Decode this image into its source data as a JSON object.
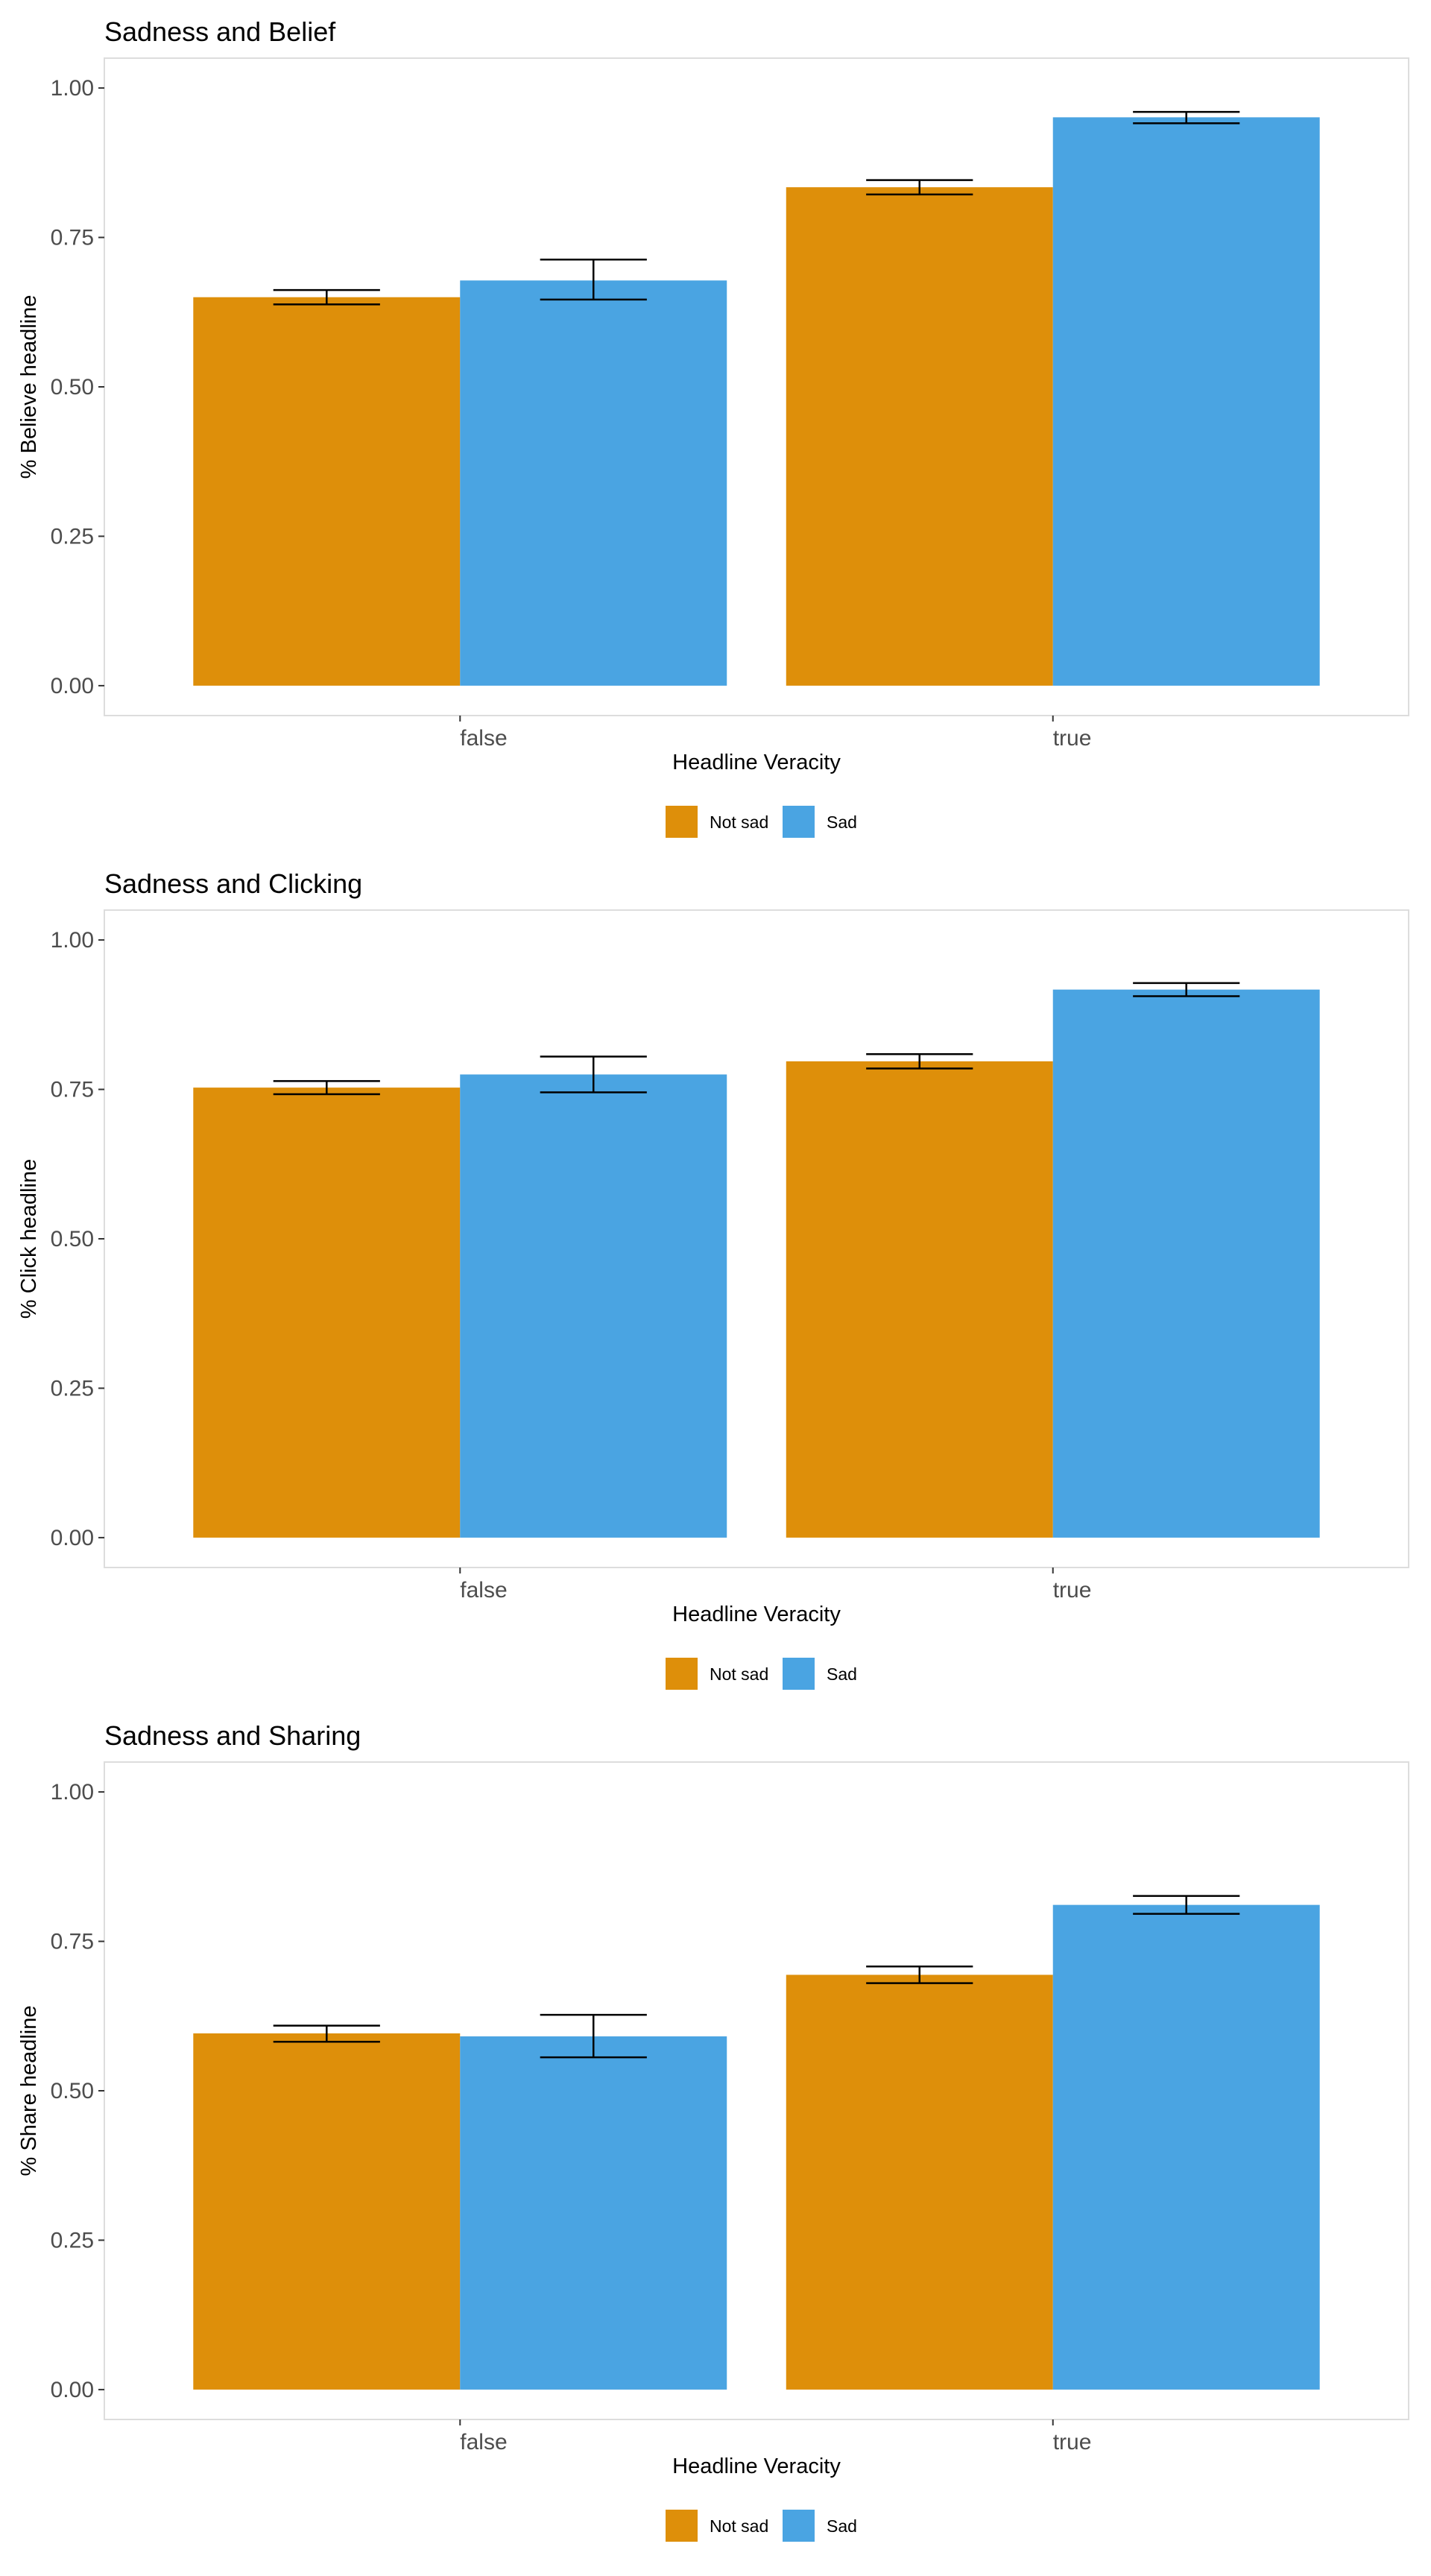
{
  "chart_data": [
    {
      "type": "bar",
      "title": "Sadness and Belief",
      "xlabel": "Headline Veracity",
      "ylabel": "% Believe headline",
      "categories": [
        "false",
        "true"
      ],
      "ylim": [
        0,
        1
      ],
      "yticks": [
        "0.00",
        "0.25",
        "0.50",
        "0.75",
        "1.00"
      ],
      "grid": false,
      "legend_position": "bottom",
      "series": [
        {
          "name": "Not sad",
          "color": "#DE8F0A",
          "values": [
            0.65,
            0.834
          ],
          "error_low": [
            0.638,
            0.822
          ],
          "error_high": [
            0.662,
            0.846
          ]
        },
        {
          "name": "Sad",
          "color": "#4AA4E2",
          "values": [
            0.678,
            0.951
          ],
          "error_low": [
            0.646,
            0.941
          ],
          "error_high": [
            0.713,
            0.96
          ]
        }
      ]
    },
    {
      "type": "bar",
      "title": "Sadness and Clicking",
      "xlabel": "Headline Veracity",
      "ylabel": "% Click headline",
      "categories": [
        "false",
        "true"
      ],
      "ylim": [
        0,
        1
      ],
      "yticks": [
        "0.00",
        "0.25",
        "0.50",
        "0.75",
        "1.00"
      ],
      "grid": false,
      "legend_position": "bottom",
      "series": [
        {
          "name": "Not sad",
          "color": "#DE8F0A",
          "values": [
            0.753,
            0.797
          ],
          "error_low": [
            0.742,
            0.785
          ],
          "error_high": [
            0.764,
            0.809
          ]
        },
        {
          "name": "Sad",
          "color": "#4AA4E2",
          "values": [
            0.775,
            0.917
          ],
          "error_low": [
            0.745,
            0.906
          ],
          "error_high": [
            0.805,
            0.928
          ]
        }
      ]
    },
    {
      "type": "bar",
      "title": "Sadness and Sharing",
      "xlabel": "Headline Veracity",
      "ylabel": "% Share headline",
      "categories": [
        "false",
        "true"
      ],
      "ylim": [
        0,
        1
      ],
      "yticks": [
        "0.00",
        "0.25",
        "0.50",
        "0.75",
        "1.00"
      ],
      "grid": false,
      "legend_position": "bottom",
      "series": [
        {
          "name": "Not sad",
          "color": "#DE8F0A",
          "values": [
            0.596,
            0.694
          ],
          "error_low": [
            0.582,
            0.68
          ],
          "error_high": [
            0.609,
            0.708
          ]
        },
        {
          "name": "Sad",
          "color": "#4AA4E2",
          "values": [
            0.591,
            0.811
          ],
          "error_low": [
            0.556,
            0.796
          ],
          "error_high": [
            0.627,
            0.826
          ]
        }
      ]
    }
  ]
}
